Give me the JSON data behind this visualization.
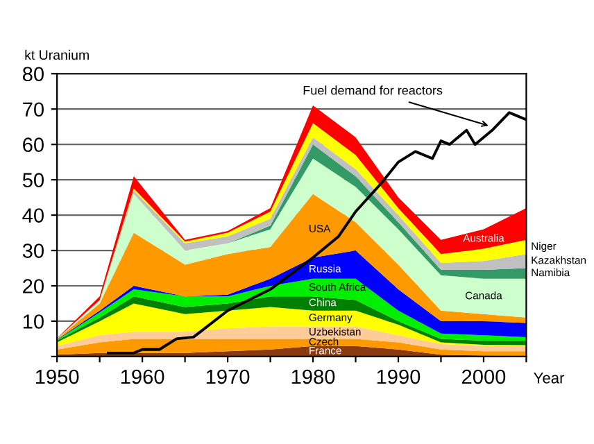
{
  "chart_data": {
    "type": "area",
    "stacked": true,
    "ylabel": "kt Uranium",
    "xlabel": "Year",
    "x": [
      1950,
      1955,
      1959,
      1965,
      1970,
      1975,
      1980,
      1985,
      1990,
      1995,
      2000,
      2005
    ],
    "series": [
      {
        "name": "France",
        "color": "#8b3a0f",
        "values": [
          0.5,
          1,
          1,
          1,
          1.5,
          2,
          3,
          3,
          2,
          0.5,
          0.3,
          0.2
        ]
      },
      {
        "name": "Czech",
        "color": "#ff9900",
        "values": [
          1.5,
          3,
          4,
          4,
          3.5,
          3,
          2,
          2,
          2,
          1.5,
          1.2,
          1.3
        ]
      },
      {
        "name": "Uzbekistan",
        "color": "#ffcc99",
        "values": [
          1,
          2,
          2,
          2,
          3,
          3.5,
          3.5,
          3.5,
          2,
          1.5,
          1.5,
          1.5
        ]
      },
      {
        "name": "Germany",
        "color": "#ffff00",
        "values": [
          1,
          4,
          8,
          5,
          5,
          5.5,
          4.5,
          4.5,
          3,
          0.5,
          0.3,
          0.2
        ]
      },
      {
        "name": "China",
        "color": "#008000",
        "values": [
          0.5,
          1,
          2,
          2,
          2,
          3,
          4,
          3,
          1,
          1,
          1.2,
          1.3
        ]
      },
      {
        "name": "South Africa",
        "color": "#00ee00",
        "values": [
          0.2,
          1.5,
          2,
          3,
          2,
          3,
          5,
          6,
          3,
          1.5,
          1.5,
          1
        ]
      },
      {
        "name": "Russia",
        "color": "#0000ff",
        "values": [
          0.1,
          0.5,
          1,
          0,
          0.5,
          2,
          6,
          8,
          6,
          3.5,
          4,
          4
        ]
      },
      {
        "name": "USA",
        "color": "#ff9900",
        "values": [
          0.2,
          2,
          15,
          9,
          11.5,
          9,
          18,
          8,
          7,
          3,
          2,
          1.5
        ]
      },
      {
        "name": "Canada",
        "color": "#ccffcc",
        "values": [
          0.1,
          1,
          11,
          4,
          3,
          5,
          10,
          10,
          10,
          10,
          10,
          11
        ]
      },
      {
        "name": "Namibia",
        "color": "#339966",
        "values": [
          0,
          0,
          0,
          0,
          0,
          1,
          4,
          3,
          2,
          1.5,
          2.5,
          3
        ]
      },
      {
        "name": "Kazakhstan",
        "color": "#c0c0c0",
        "values": [
          0,
          0,
          1,
          2,
          2,
          2,
          2,
          2,
          2,
          2,
          2.5,
          4
        ]
      },
      {
        "name": "Niger",
        "color": "#ffff00",
        "values": [
          0,
          0,
          0.5,
          0.5,
          1,
          2,
          4,
          4,
          2,
          2.5,
          3.5,
          4
        ]
      },
      {
        "name": "Australia",
        "color": "#ff0000",
        "values": [
          0.1,
          1,
          3.5,
          0.5,
          0.5,
          1,
          5,
          5,
          3,
          4,
          5.5,
          9
        ]
      },
      {
        "type": "line",
        "color": "#000000",
        "x": [
          1956,
          1959,
          1960,
          1962,
          1964,
          1966,
          1970,
          1975,
          1980,
          1983,
          1985,
          1988,
          1990,
          1992,
          1994,
          1995,
          1996,
          1998,
          1999,
          2001,
          2003,
          2004,
          2005
        ],
        "values": [
          1,
          1,
          2,
          2,
          5,
          5.5,
          13,
          19,
          28,
          34,
          41,
          49,
          55,
          58,
          56,
          61,
          60,
          64,
          60,
          64,
          69,
          68,
          67
        ]
      }
    ],
    "annotations": [
      {
        "text": "Fuel demand for reactors",
        "x": 2001,
        "y": 65
      }
    ],
    "xlim": [
      1950,
      2005
    ],
    "xticks": [
      1950,
      {
        "value": 1955,
        "label": null
      },
      1960,
      {
        "value": 1965,
        "label": null
      },
      1970,
      {
        "value": 1975,
        "label": null
      },
      1980,
      {
        "value": 1985,
        "label": null
      },
      1990,
      {
        "value": 1995,
        "label": null
      },
      2000,
      {
        "value": 2005,
        "label": null
      }
    ],
    "ylim": [
      0,
      80
    ],
    "yticks": [
      {
        "value": 0,
        "label": null
      },
      10,
      20,
      30,
      40,
      50,
      60,
      70,
      80
    ],
    "grid": "y",
    "legend": false
  }
}
